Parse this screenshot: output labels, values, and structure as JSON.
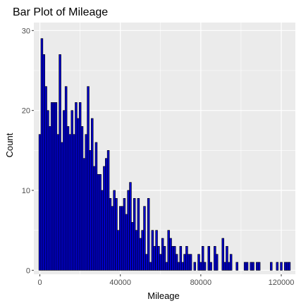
{
  "chart_data": {
    "type": "bar",
    "title": "Bar Plot of Mileage",
    "xlabel": "Mileage",
    "ylabel": "Count",
    "xlim": [
      -3000,
      127000
    ],
    "ylim": [
      -0.5,
      31
    ],
    "bin_width": 1000,
    "x_ticks": [
      0,
      40000,
      80000,
      120000
    ],
    "x_tick_labels": [
      "0",
      "40000",
      "80000",
      "120000"
    ],
    "y_ticks": [
      0,
      10,
      20,
      30
    ],
    "y_tick_labels": [
      "0",
      "10",
      "20",
      "30"
    ],
    "grid": true,
    "legend": "none",
    "colors": {
      "fill": "#0000cc",
      "outline": "#000000",
      "panel": "#ebebeb",
      "gridline": "#ffffff"
    },
    "x": [
      0,
      1000,
      2000,
      3000,
      4000,
      5000,
      6000,
      7000,
      8000,
      9000,
      10000,
      11000,
      12000,
      13000,
      14000,
      15000,
      16000,
      17000,
      18000,
      19000,
      20000,
      21000,
      22000,
      23000,
      24000,
      25000,
      26000,
      27000,
      28000,
      29000,
      30000,
      31000,
      32000,
      33000,
      34000,
      35000,
      36000,
      37000,
      38000,
      39000,
      40000,
      41000,
      42000,
      43000,
      44000,
      45000,
      46000,
      47000,
      48000,
      49000,
      50000,
      51000,
      52000,
      53000,
      54000,
      55000,
      56000,
      57000,
      58000,
      59000,
      60000,
      61000,
      62000,
      63000,
      64000,
      65000,
      66000,
      67000,
      68000,
      69000,
      70000,
      71000,
      72000,
      73000,
      74000,
      75000,
      76000,
      77000,
      78000,
      79000,
      80000,
      81000,
      82000,
      83000,
      84000,
      85000,
      86000,
      87000,
      88000,
      89000,
      90000,
      91000,
      92000,
      93000,
      94000,
      95000,
      96000,
      97000,
      98000,
      99000,
      100000,
      101000,
      102000,
      103000,
      104000,
      105000,
      106000,
      107000,
      108000,
      109000,
      110000,
      111000,
      112000,
      113000,
      114000,
      115000,
      116000,
      117000,
      118000,
      119000,
      120000,
      121000,
      122000,
      123000,
      124000
    ],
    "values": [
      17,
      29,
      27,
      23,
      20,
      18,
      21,
      21,
      21,
      17,
      27,
      16,
      20,
      23,
      18,
      17,
      20,
      17,
      21,
      19,
      21,
      18,
      14,
      17,
      23,
      15,
      19,
      13,
      16,
      12,
      12,
      10,
      13,
      14,
      15,
      9,
      8,
      10,
      9,
      5,
      8,
      8,
      9,
      7,
      10,
      11,
      6,
      9,
      5,
      9,
      4,
      5,
      8,
      2,
      9,
      1,
      5,
      3,
      5,
      3,
      2,
      4,
      3,
      1,
      5,
      4,
      3,
      3,
      2,
      1,
      3,
      1,
      2,
      3,
      2,
      2,
      0,
      1,
      0,
      2,
      1,
      3,
      1,
      0,
      3,
      1,
      0,
      3,
      2,
      0,
      0,
      4,
      1,
      3,
      1,
      2,
      0,
      0,
      1,
      0,
      0,
      0,
      1,
      1,
      0,
      1,
      1,
      0,
      1,
      1,
      0,
      0,
      0,
      0,
      0,
      1,
      0,
      0,
      1,
      0,
      1,
      0,
      1,
      1,
      1
    ]
  }
}
